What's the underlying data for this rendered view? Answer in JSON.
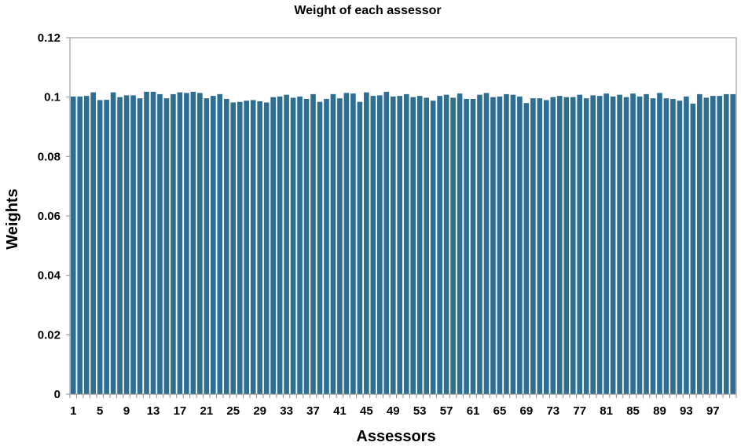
{
  "chart_data": {
    "type": "bar",
    "title": "Weight of each assessor",
    "xlabel": "Assessors",
    "ylabel": "Weights",
    "ylim": [
      0,
      0.12
    ],
    "y_ticks": [
      "0",
      "0.02",
      "0.04",
      "0.06",
      "0.08",
      "0.1",
      "0.12"
    ],
    "x_tick_labels": [
      "1",
      "5",
      "9",
      "13",
      "17",
      "21",
      "25",
      "29",
      "33",
      "37",
      "41",
      "45",
      "49",
      "53",
      "57",
      "61",
      "65",
      "69",
      "73",
      "77",
      "81",
      "85",
      "89",
      "93",
      "97"
    ],
    "grid": false,
    "legend": "none",
    "bar_color": "#2E6E92",
    "categories": [
      1,
      2,
      3,
      4,
      5,
      6,
      7,
      8,
      9,
      10,
      11,
      12,
      13,
      14,
      15,
      16,
      17,
      18,
      19,
      20,
      21,
      22,
      23,
      24,
      25,
      26,
      27,
      28,
      29,
      30,
      31,
      32,
      33,
      34,
      35,
      36,
      37,
      38,
      39,
      40,
      41,
      42,
      43,
      44,
      45,
      46,
      47,
      48,
      49,
      50,
      51,
      52,
      53,
      54,
      55,
      56,
      57,
      58,
      59,
      60,
      61,
      62,
      63,
      64,
      65,
      66,
      67,
      68,
      69,
      70,
      71,
      72,
      73,
      74,
      75,
      76,
      77,
      78,
      79,
      80,
      81,
      82,
      83,
      84,
      85,
      86,
      87,
      88,
      89,
      90,
      91,
      92,
      93,
      94,
      95,
      96,
      97,
      98,
      99,
      100
    ],
    "values": [
      0.1002,
      0.1002,
      0.1004,
      0.1016,
      0.099,
      0.0991,
      0.1016,
      0.1,
      0.1006,
      0.1006,
      0.0996,
      0.1018,
      0.1018,
      0.101,
      0.0996,
      0.101,
      0.1016,
      0.1014,
      0.1018,
      0.1014,
      0.0996,
      0.1004,
      0.101,
      0.0994,
      0.0982,
      0.0984,
      0.0988,
      0.099,
      0.0986,
      0.0982,
      0.1,
      0.1002,
      0.1008,
      0.0998,
      0.1002,
      0.0994,
      0.101,
      0.0984,
      0.0994,
      0.101,
      0.0996,
      0.1014,
      0.1012,
      0.0984,
      0.1016,
      0.1004,
      0.1006,
      0.1018,
      0.1002,
      0.1004,
      0.101,
      0.1,
      0.1004,
      0.0998,
      0.0988,
      0.1004,
      0.1008,
      0.0998,
      0.1012,
      0.0994,
      0.0994,
      0.1008,
      0.1014,
      0.1,
      0.1002,
      0.101,
      0.1008,
      0.1002,
      0.098,
      0.0996,
      0.0996,
      0.099,
      0.1,
      0.1004,
      0.1,
      0.1,
      0.1008,
      0.0996,
      0.1006,
      0.1004,
      0.1012,
      0.1002,
      0.1008,
      0.1,
      0.1012,
      0.1002,
      0.101,
      0.0996,
      0.1014,
      0.0996,
      0.0994,
      0.0988,
      0.1002,
      0.0978,
      0.101,
      0.0998,
      0.1004,
      0.1004,
      0.101,
      0.101
    ]
  }
}
